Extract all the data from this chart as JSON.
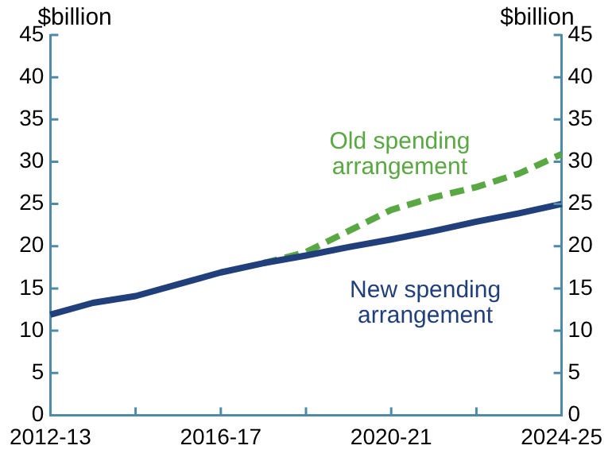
{
  "chart_data": {
    "type": "line",
    "categories": [
      "2012-13",
      null,
      null,
      null,
      "2016-17",
      null,
      null,
      null,
      "2020-21",
      null,
      null,
      null,
      "2024-25"
    ],
    "series": [
      {
        "name": "New spending arrangement",
        "color": "#213f7b",
        "line_style": "solid",
        "values": [
          11.9,
          13.3,
          14.1,
          15.5,
          16.9,
          18.0,
          18.9,
          19.9,
          20.8,
          21.8,
          22.9,
          23.9,
          25.0
        ]
      },
      {
        "name": "Old spending arrangement",
        "color": "#5aa843",
        "line_style": "dashed",
        "values": [
          null,
          null,
          null,
          null,
          null,
          18.0,
          19.3,
          21.8,
          24.3,
          25.8,
          27.0,
          28.6,
          30.9
        ]
      }
    ],
    "ylabel": "$billion",
    "y2label": "$billion",
    "ylim": [
      0,
      45
    ],
    "yticks": [
      0,
      5,
      10,
      15,
      20,
      25,
      30,
      35,
      40,
      45
    ],
    "y2lim": [
      0,
      45
    ],
    "y2ticks": [
      0,
      5,
      10,
      15,
      20,
      25,
      30,
      35,
      40,
      45
    ],
    "grid": false,
    "legend": false,
    "marker": "none"
  }
}
